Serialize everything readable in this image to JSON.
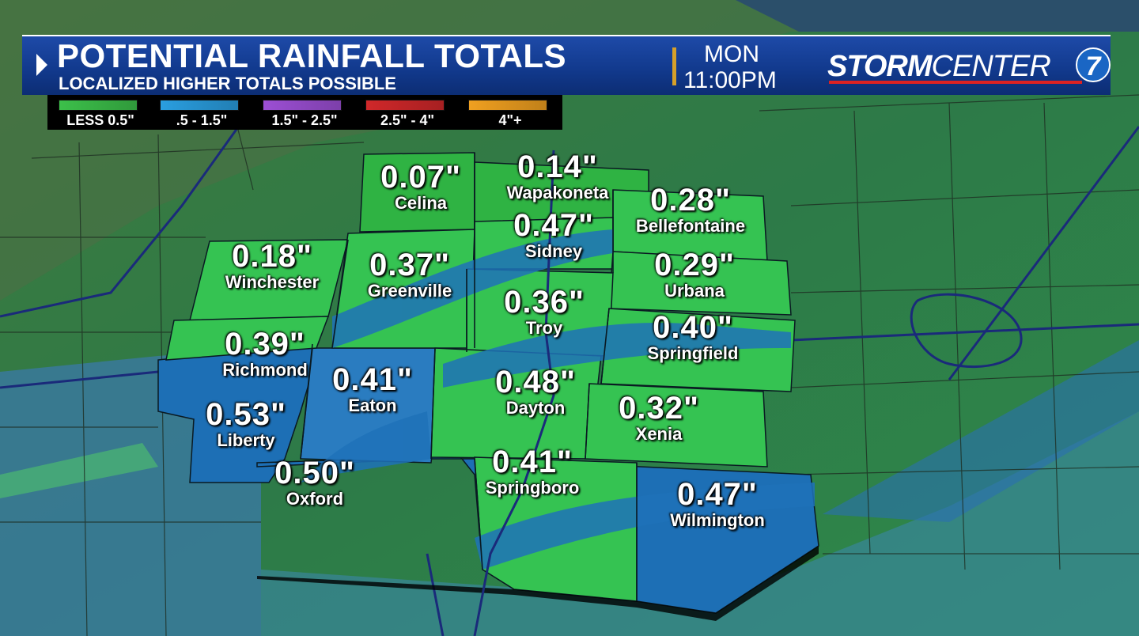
{
  "header": {
    "title": "POTENTIAL RAINFALL TOTALS",
    "subtitle": "LOCALIZED HIGHER TOTALS POSSIBLE",
    "day": "MON",
    "time": "11:00PM",
    "logo_bold": "STORM",
    "logo_rest": "CENTER",
    "logo_number": "7"
  },
  "legend": [
    {
      "label": "LESS 0.5\"",
      "color": "#3cc04a"
    },
    {
      "label": ".5 - 1.5\"",
      "color": "#2a9ee0"
    },
    {
      "label": "1.5\" - 2.5\"",
      "color": "#9c4fd4"
    },
    {
      "label": "2.5\" - 4\"",
      "color": "#d0282a"
    },
    {
      "label": "4\"+",
      "color": "#f0a020"
    }
  ],
  "cities": [
    {
      "name": "Celina",
      "value": "0.07\""
    },
    {
      "name": "Wapakoneta",
      "value": "0.14\""
    },
    {
      "name": "Bellefontaine",
      "value": "0.28\""
    },
    {
      "name": "Sidney",
      "value": "0.47\""
    },
    {
      "name": "Winchester",
      "value": "0.18\""
    },
    {
      "name": "Greenville",
      "value": "0.37\""
    },
    {
      "name": "Urbana",
      "value": "0.29\""
    },
    {
      "name": "Troy",
      "value": "0.36\""
    },
    {
      "name": "Richmond",
      "value": "0.39\""
    },
    {
      "name": "Springfield",
      "value": "0.40\""
    },
    {
      "name": "Eaton",
      "value": "0.41\""
    },
    {
      "name": "Dayton",
      "value": "0.48\""
    },
    {
      "name": "Liberty",
      "value": "0.53\""
    },
    {
      "name": "Xenia",
      "value": "0.32\""
    },
    {
      "name": "Oxford",
      "value": "0.50\""
    },
    {
      "name": "Springboro",
      "value": "0.41\""
    },
    {
      "name": "Wilmington",
      "value": "0.47\""
    }
  ],
  "colors": {
    "light_rain": "#3fcf5a",
    "moderate_rain": "#1f72b8",
    "background_land": "#2f7a44",
    "banner": "#123a8e"
  }
}
